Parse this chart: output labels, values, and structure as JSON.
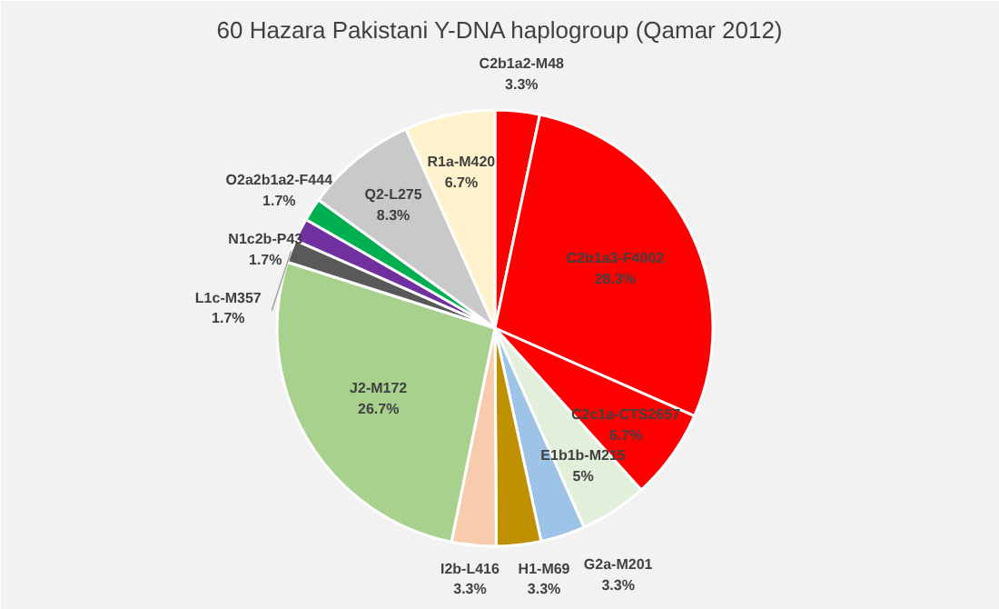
{
  "chart_data": {
    "type": "pie",
    "title": "60 Hazara Pakistani Y-DNA haplogroup (Qamar 2012)",
    "categories": [
      "C2b1a2-M48",
      "C2b1a3-F4002",
      "C2c1a-CTS2657",
      "E1b1b-M215",
      "G2a-M201",
      "H1-M69",
      "I2b-L416",
      "J2-M172",
      "L1c-M357",
      "N1c2b-P43",
      "O2a2b1a2-F444",
      "Q2-L275",
      "R1a-M420"
    ],
    "values": [
      3.3,
      28.3,
      6.7,
      5,
      3.3,
      3.3,
      3.3,
      26.7,
      1.7,
      1.7,
      1.7,
      8.3,
      6.7
    ],
    "value_labels": [
      "3.3%",
      "28.3%",
      "6.7%",
      "5%",
      "3.3%",
      "3.3%",
      "3.3%",
      "26.7%",
      "1.7%",
      "1.7%",
      "1.7%",
      "8.3%",
      "6.7%"
    ],
    "colors": [
      "#ff0000",
      "#ff0000",
      "#ff0000",
      "#e2efda",
      "#9dc3e6",
      "#bf9000",
      "#f8cbad",
      "#a9d18e",
      "#595959",
      "#7030a0",
      "#00b050",
      "#c9c9c9",
      "#fff2cc"
    ]
  }
}
